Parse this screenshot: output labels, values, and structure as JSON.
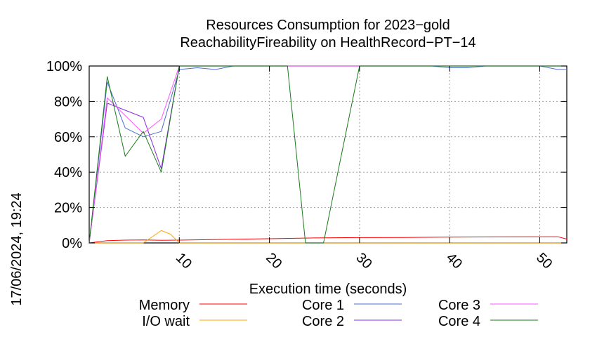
{
  "chart_data": {
    "type": "line",
    "title": [
      "Resources Consumption for 2023−gold",
      "ReachabilityFireability on HealthRecord−PT−14"
    ],
    "xlabel": "Execution time (seconds)",
    "ylabel": "",
    "side_label": "17/06/2024, 19:24",
    "xlim": [
      0,
      53
    ],
    "ylim": [
      0,
      100
    ],
    "xticks": [
      10,
      20,
      30,
      40,
      50
    ],
    "yticks": [
      0,
      20,
      40,
      60,
      80,
      100
    ],
    "ytick_labels": [
      "0%",
      "20%",
      "40%",
      "60%",
      "80%",
      "100%"
    ],
    "grid": true,
    "legend_position": "bottom",
    "series": [
      {
        "name": "Memory",
        "color": "#ff0000",
        "x": [
          0,
          2,
          4,
          6,
          8,
          10,
          15,
          20,
          25,
          30,
          35,
          40,
          45,
          50,
          52,
          53
        ],
        "y": [
          0,
          1.3,
          1.6,
          1.7,
          1.5,
          1.6,
          2.0,
          2.4,
          2.8,
          3.0,
          3.1,
          3.3,
          3.4,
          3.5,
          3.5,
          2.2
        ]
      },
      {
        "name": "I/O wait",
        "color": "#ffa500",
        "x": [
          0,
          2,
          4,
          6,
          8,
          9,
          10,
          15,
          20,
          30,
          40,
          50,
          53
        ],
        "y": [
          0,
          0,
          0,
          0,
          7,
          5,
          0,
          0,
          0,
          0,
          0,
          0,
          0
        ]
      },
      {
        "name": "Core 1",
        "color": "#4a6fd1",
        "x": [
          0,
          2,
          4,
          6,
          8,
          10,
          12,
          14,
          16,
          18,
          20,
          30,
          38,
          40,
          42,
          44,
          50,
          52,
          53
        ],
        "y": [
          0,
          91,
          65,
          60,
          63,
          98,
          99,
          98,
          100,
          100,
          100,
          100,
          100,
          99,
          99,
          100,
          100,
          98,
          98
        ]
      },
      {
        "name": "Core 2",
        "color": "#8a2be2",
        "x": [
          0,
          2,
          4,
          6,
          8,
          10,
          12,
          20,
          30,
          40,
          50,
          53
        ],
        "y": [
          0,
          79,
          75,
          71,
          42,
          100,
          100,
          100,
          100,
          100,
          100,
          100
        ]
      },
      {
        "name": "Core 3",
        "color": "#ff55ff",
        "x": [
          0,
          2,
          4,
          6,
          8,
          10,
          12,
          20,
          30,
          40,
          50,
          53
        ],
        "y": [
          0,
          82,
          72,
          62,
          70,
          100,
          100,
          100,
          100,
          100,
          100,
          100
        ]
      },
      {
        "name": "Core 4",
        "color": "#1a7a1a",
        "x": [
          0,
          2,
          4,
          6,
          8,
          10,
          12,
          20,
          22,
          24,
          26,
          28,
          30,
          40,
          50,
          53
        ],
        "y": [
          0,
          94,
          49,
          63,
          40,
          100,
          100,
          100,
          100,
          0,
          0,
          50,
          100,
          100,
          100,
          100
        ]
      }
    ]
  }
}
